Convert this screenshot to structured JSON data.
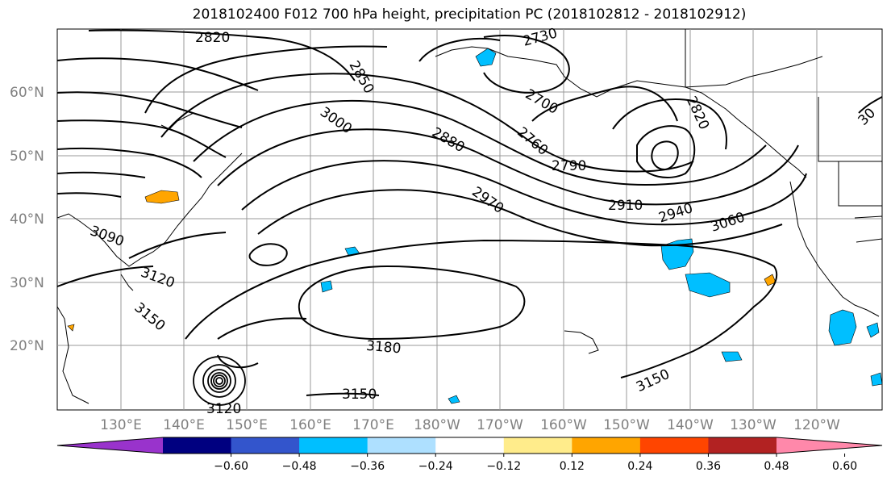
{
  "title": "2018102400 F012 700 hPa height, precipitation PC (2018102812 - 2018102912)",
  "lat_labels": [
    "60°N",
    "50°N",
    "40°N",
    "30°N",
    "20°N"
  ],
  "lon_labels": [
    "130°E",
    "140°E",
    "150°E",
    "160°E",
    "170°E",
    "180°W",
    "170°W",
    "160°W",
    "150°W",
    "140°W",
    "130°W",
    "120°W"
  ],
  "contour_labels": [
    "2820",
    "2850",
    "2730",
    "2700",
    "2820",
    "3000",
    "2880",
    "2760",
    "2790",
    "2970",
    "2910",
    "2940",
    "3060",
    "3090",
    "3120",
    "3150",
    "3180",
    "3150",
    "3150",
    "3120",
    "30"
  ],
  "colorbar": {
    "ticks": [
      "−0.60",
      "−0.48",
      "−0.36",
      "−0.24",
      "−0.12",
      "0.12",
      "0.24",
      "0.36",
      "0.48",
      "0.60"
    ],
    "colors": [
      "#9933cc",
      "#000080",
      "#3355cc",
      "#00bfff",
      "#aee0ff",
      "#ffffff",
      "#ffec8b",
      "#ffa500",
      "#ff4500",
      "#b22222",
      "#ff88aa"
    ]
  },
  "colors": {
    "contour": "#000000",
    "grid": "#999999",
    "negative_precip": "#00bfff",
    "positive_precip": "#ffa500"
  }
}
